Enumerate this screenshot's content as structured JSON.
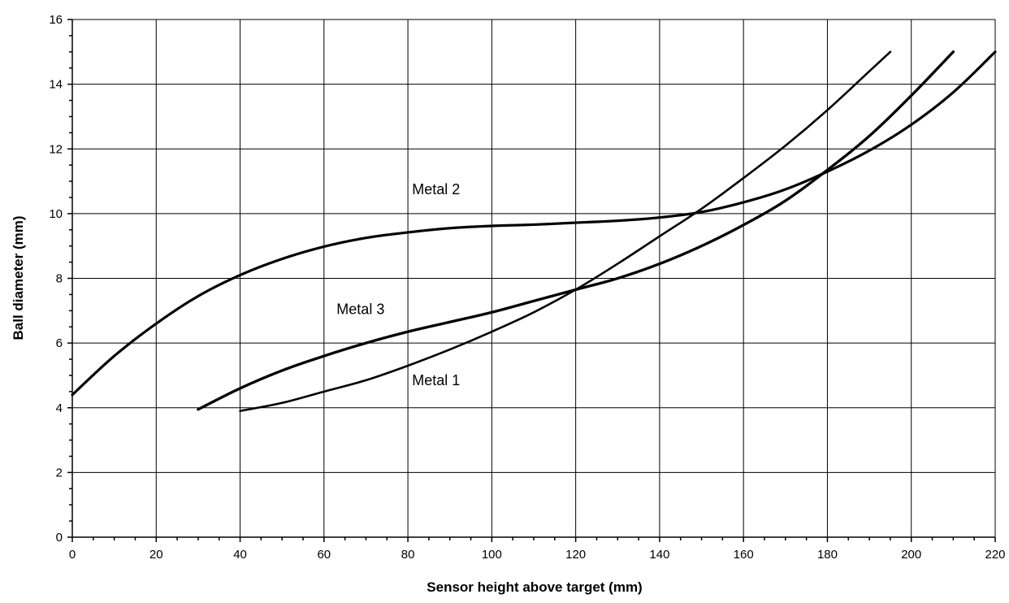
{
  "chart_data": {
    "type": "line",
    "xlabel": "Sensor height above target (mm)",
    "ylabel": "Ball diameter (mm)",
    "xlim": [
      0,
      220
    ],
    "ylim": [
      0,
      16
    ],
    "x_ticks": [
      0,
      20,
      40,
      60,
      80,
      100,
      120,
      140,
      160,
      180,
      200,
      220
    ],
    "y_ticks": [
      0,
      2,
      4,
      6,
      8,
      10,
      12,
      14,
      16
    ],
    "grid": true,
    "legend": "none",
    "series": [
      {
        "name": "Metal 1",
        "style": "solid",
        "x": [
          40,
          50,
          60,
          70,
          80,
          90,
          100,
          110,
          120,
          130,
          140,
          150,
          160,
          170,
          180,
          190,
          195
        ],
        "y": [
          3.9,
          4.15,
          4.5,
          4.85,
          5.3,
          5.8,
          6.35,
          6.95,
          7.65,
          8.45,
          9.3,
          10.15,
          11.1,
          12.1,
          13.2,
          14.4,
          15.0
        ]
      },
      {
        "name": "Metal 2",
        "style": "dashed",
        "x": [
          0,
          10,
          20,
          30,
          40,
          50,
          60,
          70,
          80,
          90,
          100,
          110,
          120,
          130,
          140,
          150,
          160,
          170,
          180,
          190,
          200,
          210,
          220
        ],
        "y": [
          4.4,
          5.6,
          6.6,
          7.45,
          8.1,
          8.6,
          8.98,
          9.25,
          9.42,
          9.55,
          9.62,
          9.66,
          9.72,
          9.78,
          9.88,
          10.05,
          10.35,
          10.75,
          11.3,
          11.95,
          12.75,
          13.75,
          15.0
        ]
      },
      {
        "name": "Metal 3",
        "style": "dotted",
        "x": [
          30,
          40,
          50,
          60,
          70,
          80,
          90,
          100,
          110,
          120,
          130,
          140,
          150,
          160,
          170,
          180,
          190,
          200,
          210
        ],
        "y": [
          3.95,
          4.6,
          5.15,
          5.6,
          6.0,
          6.35,
          6.65,
          6.95,
          7.3,
          7.65,
          8.0,
          8.45,
          9.0,
          9.65,
          10.4,
          11.35,
          12.4,
          13.65,
          15.0
        ]
      }
    ],
    "annotations": [
      {
        "text": "Metal 2",
        "x": 81,
        "y": 10.6
      },
      {
        "text": "Metal 3",
        "x": 63,
        "y": 6.9
      },
      {
        "text": "Metal 1",
        "x": 81,
        "y": 4.7
      }
    ]
  }
}
